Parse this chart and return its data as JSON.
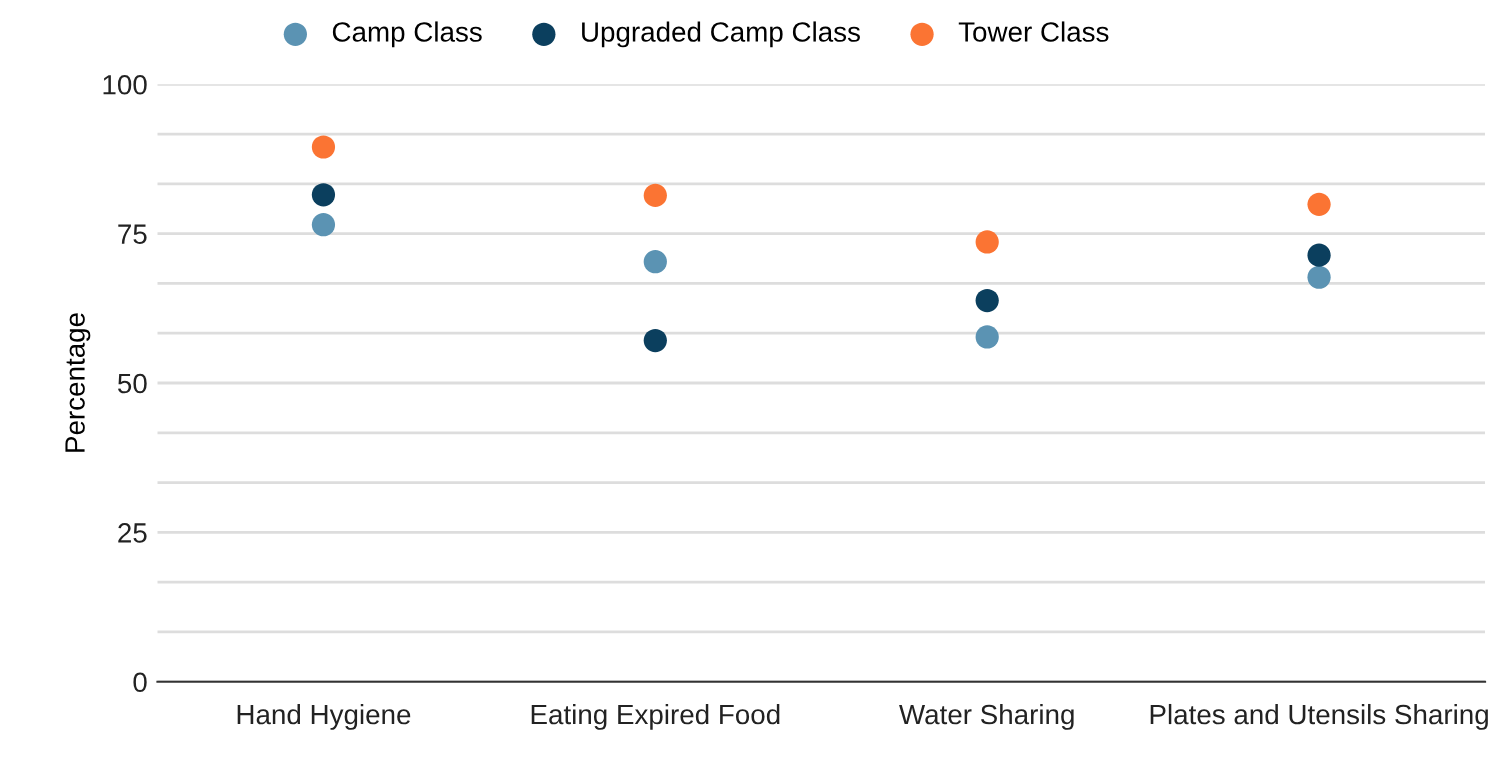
{
  "chart_data": {
    "type": "scatter",
    "ylabel": "Percentage",
    "categories": [
      "Hand Hygiene",
      "Eating Expired Food",
      "Water Sharing",
      "Plates and Utensils Sharing"
    ],
    "series": [
      {
        "name": "Camp Class",
        "color": "#5b93b3",
        "values": [
          76.5,
          70.3,
          57.7,
          67.7
        ]
      },
      {
        "name": "Upgraded Camp Class",
        "color": "#0b3f5e",
        "values": [
          81.5,
          57.1,
          63.8,
          71.4
        ]
      },
      {
        "name": "Tower Class",
        "color": "#fb7433",
        "values": [
          89.5,
          81.4,
          73.6,
          79.9
        ]
      }
    ],
    "ylim": [
      0,
      100
    ],
    "yticks": [
      0,
      {
        "value": 8.33,
        "label": null
      },
      {
        "value": 16.67,
        "label": null
      },
      25,
      {
        "value": 33.33,
        "label": null
      },
      {
        "value": 41.67,
        "label": null
      },
      50,
      {
        "value": 58.33,
        "label": null
      },
      {
        "value": 66.67,
        "label": null
      },
      75,
      {
        "value": 83.33,
        "label": null
      },
      {
        "value": 91.67,
        "label": null
      },
      100
    ],
    "grid": "y",
    "legend": "top",
    "marker": "circle"
  }
}
